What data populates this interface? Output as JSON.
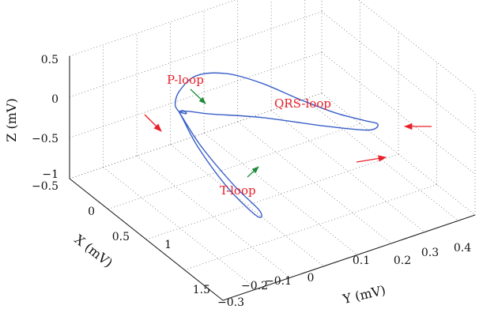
{
  "chart_data": {
    "type": "line",
    "projection": "3d",
    "xlabel": "X (mV)",
    "ylabel": "Y (mV)",
    "zlabel": "Z (mV)",
    "xlim": [
      -0.5,
      1.5
    ],
    "ylim": [
      -0.3,
      0.45
    ],
    "zlim": [
      -1,
      0.5
    ],
    "x_ticks": [
      "−0.5",
      "0",
      "0.5",
      "1",
      "1.5"
    ],
    "y_ticks": [
      "−0.3",
      "−0.2",
      "−0.1",
      "0",
      "0.1",
      "0.2",
      "0.3",
      "0.4"
    ],
    "z_ticks": [
      "−1",
      "−0.5",
      "0",
      "0.5"
    ],
    "grid": true,
    "line_color": "#3a5fc8",
    "annotation_color": "#e8212a",
    "arrow_colors": {
      "loop_label": "#1e8a3a",
      "direction": "#e8212a"
    },
    "annotations": [
      "P-loop",
      "QRS-loop",
      "T-loop"
    ],
    "series": [
      {
        "x": [
          0.05,
          0.0,
          -0.12,
          -0.25,
          -0.3,
          -0.2,
          0.0,
          0.2,
          0.35,
          0.45,
          0.5,
          0.4,
          0.25,
          0.15,
          0.08,
          0.05
        ],
        "y": [
          -0.1,
          -0.1,
          -0.06,
          0.02,
          0.12,
          0.2,
          0.27,
          0.33,
          0.38,
          0.4,
          0.36,
          0.25,
          0.1,
          -0.03,
          -0.08,
          -0.1
        ],
        "z": [
          -0.05,
          0.0,
          0.02,
          0.0,
          -0.15,
          -0.3,
          -0.45,
          -0.55,
          -0.6,
          -0.6,
          -0.58,
          -0.45,
          -0.25,
          -0.1,
          -0.05,
          -0.05
        ]
      },
      {
        "x": [
          0.05,
          0.25,
          0.55,
          0.75,
          0.8,
          0.6,
          0.3,
          0.1,
          0.05
        ],
        "y": [
          -0.1,
          -0.08,
          -0.05,
          -0.02,
          -0.04,
          -0.08,
          -0.1,
          -0.1,
          -0.1
        ],
        "z": [
          -0.05,
          -0.35,
          -0.65,
          -0.85,
          -0.85,
          -0.6,
          -0.3,
          -0.1,
          -0.05
        ]
      },
      {
        "x": [
          0.05,
          0.08,
          0.1,
          0.07,
          0.04,
          0.05
        ],
        "y": [
          -0.1,
          -0.095,
          -0.09,
          -0.085,
          -0.095,
          -0.1
        ],
        "z": [
          -0.05,
          -0.02,
          -0.04,
          -0.08,
          -0.07,
          -0.05
        ]
      }
    ]
  }
}
